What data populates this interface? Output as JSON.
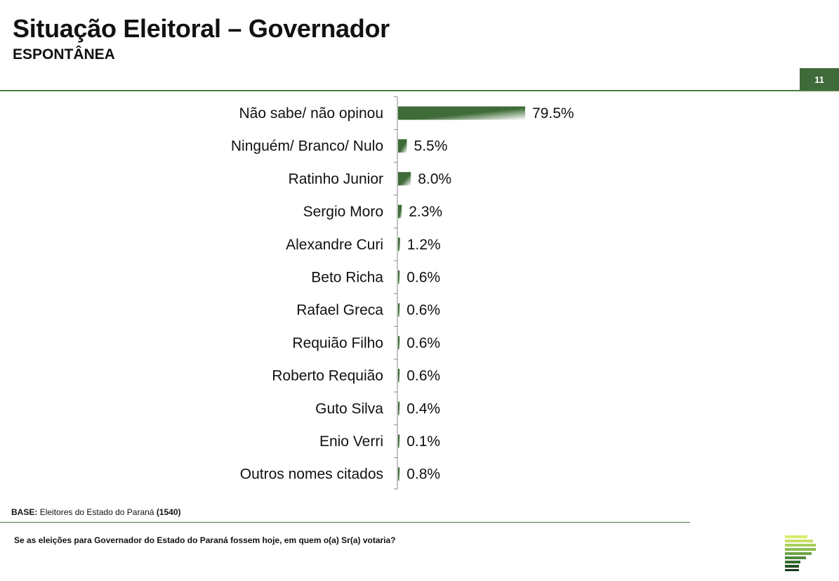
{
  "header": {
    "title": "Situação Eleitoral – Governador",
    "subtitle": "ESPONTÂNEA",
    "page_number": "11"
  },
  "footer": {
    "base_label": "BASE:",
    "base_text": "Eleitores do Estado do Paraná",
    "base_count": "(1540)",
    "question": "Se as eleições para Governador do Estado do Paraná fossem hoje, em quem o(a) Sr(a) votaria?"
  },
  "colors": {
    "bar_dark": "#3e6b37",
    "bar_light": "#ffffff",
    "accent": "#3f6b3a"
  },
  "logo_icon": "stacked-bars-logo-icon",
  "chart_data": {
    "type": "bar",
    "orientation": "horizontal",
    "categories": [
      "Não sabe/ não opinou",
      "Ninguém/ Branco/ Nulo",
      "Ratinho Junior",
      "Sergio Moro",
      "Alexandre Curi",
      "Beto Richa",
      "Rafael Greca",
      "Requião Filho",
      "Roberto Requião",
      "Guto Silva",
      "Enio Verri",
      "Outros nomes citados"
    ],
    "values": [
      79.5,
      5.5,
      8.0,
      2.3,
      1.2,
      0.6,
      0.6,
      0.6,
      0.6,
      0.4,
      0.1,
      0.8
    ],
    "labels": [
      "79.5%",
      "5.5%",
      "8.0%",
      "2.3%",
      "1.2%",
      "0.6%",
      "0.6%",
      "0.6%",
      "0.6%",
      "0.4%",
      "0.1%",
      "0.8%"
    ],
    "unit": "%",
    "xlim": [
      0,
      100
    ],
    "grid": false,
    "legend": "none"
  }
}
